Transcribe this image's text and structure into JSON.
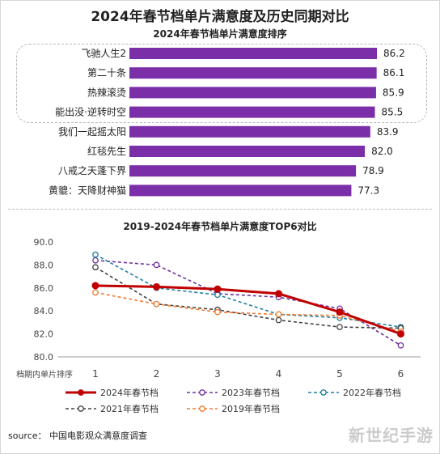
{
  "header": {
    "title": "2024年春节档单片满意度及历史同期对比",
    "bar_title": "2024年春节档单片满意度排序"
  },
  "line_title": "2019-2024年春节档单片满意度TOP6对比",
  "source": "source：  中国电影观众满意度调查",
  "watermark": "新世纪手游",
  "chart_data": [
    {
      "type": "bar",
      "orientation": "horizontal",
      "title": "2024年春节档单片满意度排序",
      "categories": [
        "飞驰人生2",
        "第二十条",
        "热辣滚烫",
        "能出没·逆转时空",
        "我们一起摇太阳",
        "红毯先生",
        "八戒之天蓬下界",
        "黄貔：天降财神猫"
      ],
      "values": [
        86.2,
        86.1,
        85.9,
        85.5,
        83.9,
        82.0,
        78.9,
        77.3
      ],
      "value_labels": [
        "86.2",
        "86.1",
        "85.9",
        "85.5",
        "83.9",
        "82.0",
        "78.9",
        "77.3"
      ],
      "xlim": [
        0,
        90
      ],
      "color": "#7a2ea8",
      "highlighted_top": 4
    },
    {
      "type": "line",
      "title": "2019-2024年春节档单片满意度TOP6对比",
      "xlabel": "档期内单片排序",
      "x": [
        1,
        2,
        3,
        4,
        5,
        6
      ],
      "ylim": [
        80.0,
        90.0
      ],
      "yticks": [
        "80.0",
        "82.0",
        "84.0",
        "86.0",
        "88.0",
        "90.0"
      ],
      "series": [
        {
          "name": "2024年春节档",
          "values": [
            86.2,
            86.1,
            85.9,
            85.5,
            83.9,
            82.0
          ],
          "color": "#c00000",
          "style": "solid-bold"
        },
        {
          "name": "2023年春节档",
          "values": [
            88.4,
            88.0,
            85.5,
            85.2,
            84.2,
            81.0
          ],
          "color": "#7030a0",
          "style": "dash"
        },
        {
          "name": "2022年春节档",
          "values": [
            88.9,
            86.0,
            85.4,
            83.7,
            83.4,
            82.6
          ],
          "color": "#1f7fa0",
          "style": "dash"
        },
        {
          "name": "2021年春节档",
          "values": [
            87.8,
            84.6,
            84.1,
            83.2,
            82.6,
            82.5
          ],
          "color": "#404040",
          "style": "dash"
        },
        {
          "name": "2019年春节档",
          "values": [
            85.6,
            84.6,
            83.9,
            83.7,
            83.6,
            82.2
          ],
          "color": "#ed7d31",
          "style": "dash"
        }
      ]
    }
  ]
}
